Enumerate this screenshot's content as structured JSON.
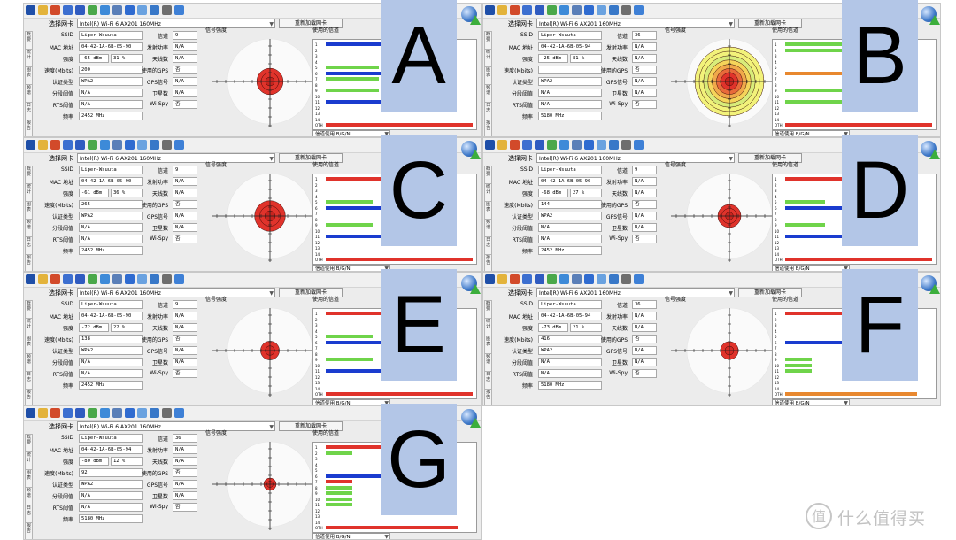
{
  "adapter_label": "选择网卡",
  "adapter_name": "Intel(R) Wi-Fi 6 AX201 160MHz",
  "refresh_label": "重新加载网卡",
  "vertical_tabs": [
    "概要",
    "统计",
    "图表",
    "频谱",
    "日志",
    "报告"
  ],
  "field_labels": {
    "ssid": "SSID",
    "mac": "MAC 地址",
    "strength": "强度",
    "speed": "速度(Mbits)",
    "auth": "认证类型",
    "fragment": "分段阈值",
    "rts": "RTS阈值",
    "freq": "频率",
    "channel": "信道",
    "txpower": "发射功率",
    "antennas": "天线数",
    "gps": "使用的GPS",
    "gps_signal": "GPS信号",
    "satellites": "卫星数",
    "wispy": "Wi-Spy"
  },
  "signal_title": "信号强度",
  "channels_title": "使用的信道",
  "channel_select": "信道使用 B/G/N",
  "channel_numbers": [
    "1",
    "2",
    "3",
    "4",
    "5",
    "6",
    "7",
    "8",
    "9",
    "10",
    "11",
    "12",
    "13",
    "14",
    "OTH"
  ],
  "colors": {
    "red": "#e0332b",
    "blue": "#1a3ccf",
    "green": "#6fd44a",
    "orange": "#e8882f",
    "overlay": "#b3c6e7"
  },
  "panels": [
    {
      "letter": "A",
      "ssid": "Liper-Wsuuta",
      "mac": "04-42-1A-6B-05-90",
      "strength_dbm": "-65 dBm",
      "strength_pct": "31 %",
      "signal_fraction": 0.31,
      "speed": "200",
      "auth": "WPA2",
      "fragment": "N/A",
      "rts": "N/A",
      "freq": "2452 MHz",
      "channel": "9",
      "txpower": "N/A",
      "antennas": "N/A",
      "gps": "否",
      "gps_signal": "N/A",
      "satellites": "N/A",
      "wispy": "否",
      "bars": [
        {
          "ch": 1,
          "color": "blue",
          "value": 0.85
        },
        {
          "ch": 5,
          "color": "green",
          "value": 0.4
        },
        {
          "ch": 6,
          "color": "blue",
          "value": 0.85
        },
        {
          "ch": 7,
          "color": "green",
          "value": 0.4
        },
        {
          "ch": 9,
          "color": "green",
          "value": 0.4
        },
        {
          "ch": 11,
          "color": "blue",
          "value": 0.85
        },
        {
          "ch": 15,
          "color": "red",
          "value": 1.0
        }
      ]
    },
    {
      "letter": "B",
      "ssid": "Liper-Wsuuta",
      "mac": "04-42-1A-6B-05-94",
      "strength_dbm": "-25 dBm",
      "strength_pct": "81 %",
      "signal_fraction": 0.81,
      "speed": "",
      "auth": "WPA2",
      "fragment": "N/A",
      "rts": "N/A",
      "freq": "5180 MHz",
      "channel": "36",
      "txpower": "N/A",
      "antennas": "N/A",
      "gps": "否",
      "gps_signal": "N/A",
      "satellites": "N/A",
      "wispy": "否",
      "bars": [
        {
          "ch": 1,
          "color": "green",
          "value": 0.45
        },
        {
          "ch": 2,
          "color": "green",
          "value": 0.45
        },
        {
          "ch": 6,
          "color": "orange",
          "value": 1.0
        },
        {
          "ch": 9,
          "color": "green",
          "value": 0.45
        },
        {
          "ch": 11,
          "color": "green",
          "value": 0.45
        },
        {
          "ch": 15,
          "color": "red",
          "value": 1.0
        }
      ]
    },
    {
      "letter": "C",
      "ssid": "Liper-Wsuuta",
      "mac": "04-42-1A-6B-05-90",
      "strength_dbm": "-61 dBm",
      "strength_pct": "36 %",
      "signal_fraction": 0.36,
      "speed": "265",
      "auth": "WPA2",
      "fragment": "N/A",
      "rts": "N/A",
      "freq": "2452 MHz",
      "channel": "9",
      "txpower": "N/A",
      "antennas": "N/A",
      "gps": "否",
      "gps_signal": "N/A",
      "satellites": "N/A",
      "wispy": "否",
      "bars": [
        {
          "ch": 1,
          "color": "red",
          "value": 0.9
        },
        {
          "ch": 5,
          "color": "green",
          "value": 0.35
        },
        {
          "ch": 6,
          "color": "blue",
          "value": 0.7
        },
        {
          "ch": 9,
          "color": "green",
          "value": 0.35
        },
        {
          "ch": 11,
          "color": "blue",
          "value": 0.7
        },
        {
          "ch": 15,
          "color": "red",
          "value": 1.0
        }
      ]
    },
    {
      "letter": "D",
      "ssid": "Liper-Wsuuta",
      "mac": "04-42-1A-6B-05-90",
      "strength_dbm": "-68 dBm",
      "strength_pct": "27 %",
      "signal_fraction": 0.27,
      "speed": "144",
      "auth": "WPA2",
      "fragment": "N/A",
      "rts": "N/A",
      "freq": "2452 MHz",
      "channel": "9",
      "txpower": "N/A",
      "antennas": "N/A",
      "gps": "否",
      "gps_signal": "N/A",
      "satellites": "N/A",
      "wispy": "否",
      "bars": [
        {
          "ch": 1,
          "color": "red",
          "value": 0.9
        },
        {
          "ch": 5,
          "color": "green",
          "value": 0.3
        },
        {
          "ch": 6,
          "color": "blue",
          "value": 0.65
        },
        {
          "ch": 9,
          "color": "green",
          "value": 0.3
        },
        {
          "ch": 11,
          "color": "blue",
          "value": 0.65
        },
        {
          "ch": 15,
          "color": "red",
          "value": 1.0
        }
      ]
    },
    {
      "letter": "E",
      "ssid": "Liper-Wsuuta",
      "mac": "04-42-1A-6B-05-90",
      "strength_dbm": "-72 dBm",
      "strength_pct": "22 %",
      "signal_fraction": 0.22,
      "speed": "138",
      "auth": "WPA2",
      "fragment": "N/A",
      "rts": "N/A",
      "freq": "2452 MHz",
      "channel": "9",
      "txpower": "N/A",
      "antennas": "N/A",
      "gps": "否",
      "gps_signal": "N/A",
      "satellites": "N/A",
      "wispy": "否",
      "bars": [
        {
          "ch": 1,
          "color": "red",
          "value": 0.9
        },
        {
          "ch": 5,
          "color": "green",
          "value": 0.35
        },
        {
          "ch": 6,
          "color": "blue",
          "value": 0.7
        },
        {
          "ch": 9,
          "color": "green",
          "value": 0.35
        },
        {
          "ch": 11,
          "color": "blue",
          "value": 0.7
        },
        {
          "ch": 15,
          "color": "red",
          "value": 1.0
        }
      ]
    },
    {
      "letter": "F",
      "ssid": "Liper-Wsuuta",
      "mac": "04-42-1A-6B-05-94",
      "strength_dbm": "-73 dBm",
      "strength_pct": "21 %",
      "signal_fraction": 0.21,
      "speed": "416",
      "auth": "WPA2",
      "fragment": "N/A",
      "rts": "N/A",
      "freq": "5180 MHz",
      "channel": "36",
      "txpower": "N/A",
      "antennas": "N/A",
      "gps": "否",
      "gps_signal": "N/A",
      "satellites": "N/A",
      "wispy": "否",
      "bars": [
        {
          "ch": 1,
          "color": "red",
          "value": 0.9
        },
        {
          "ch": 6,
          "color": "blue",
          "value": 0.55
        },
        {
          "ch": 9,
          "color": "green",
          "value": 0.2
        },
        {
          "ch": 10,
          "color": "green",
          "value": 0.2
        },
        {
          "ch": 11,
          "color": "green",
          "value": 0.2
        },
        {
          "ch": 15,
          "color": "orange",
          "value": 0.9
        }
      ]
    },
    {
      "letter": "G",
      "ssid": "Liper-Wsuuta",
      "mac": "04-42-1A-6B-05-94",
      "strength_dbm": "-80 dBm",
      "strength_pct": "12 %",
      "signal_fraction": 0.12,
      "speed": "92",
      "auth": "WPA2",
      "fragment": "N/A",
      "rts": "N/A",
      "freq": "5180 MHz",
      "channel": "36",
      "txpower": "N/A",
      "antennas": "N/A",
      "gps": "否",
      "gps_signal": "N/A",
      "satellites": "N/A",
      "wispy": "否",
      "bars": [
        {
          "ch": 1,
          "color": "red",
          "value": 0.9
        },
        {
          "ch": 2,
          "color": "green",
          "value": 0.2
        },
        {
          "ch": 6,
          "color": "blue",
          "value": 0.55
        },
        {
          "ch": 7,
          "color": "red",
          "value": 0.2
        },
        {
          "ch": 8,
          "color": "green",
          "value": 0.2
        },
        {
          "ch": 9,
          "color": "green",
          "value": 0.2
        },
        {
          "ch": 10,
          "color": "green",
          "value": 0.2
        },
        {
          "ch": 11,
          "color": "green",
          "value": 0.2
        },
        {
          "ch": 15,
          "color": "red",
          "value": 0.9
        }
      ]
    }
  ],
  "watermark": {
    "text": "什么值得买",
    "icon": "smzdm-logo-icon"
  }
}
